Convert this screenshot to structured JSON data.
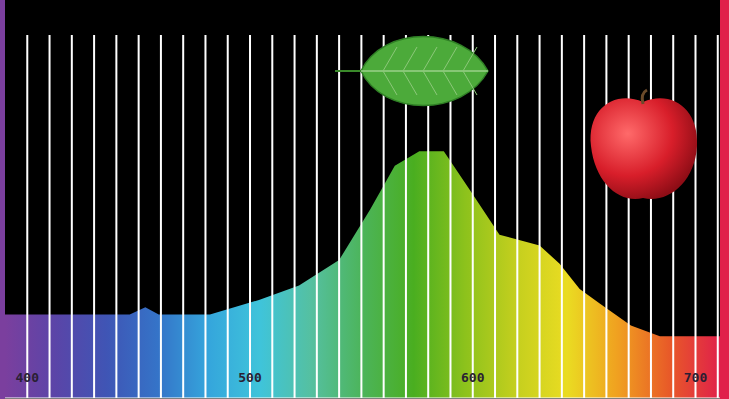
{
  "chart_data": {
    "type": "area",
    "x": [
      390,
      446,
      453,
      459,
      482,
      504,
      522,
      540,
      554,
      565,
      576,
      587,
      599,
      612,
      630,
      639,
      648,
      657,
      671,
      684,
      698,
      711
    ],
    "values": [
      23,
      23,
      25,
      23,
      23,
      27,
      31,
      38,
      52,
      64,
      68,
      68,
      57,
      45,
      42,
      37,
      30,
      26,
      20,
      17,
      17,
      17
    ],
    "xlim": [
      390,
      711
    ],
    "xticks": [
      400,
      500,
      600,
      700
    ],
    "ylim": [
      0,
      100
    ],
    "grid": true,
    "tick_labels": "x"
  }
}
